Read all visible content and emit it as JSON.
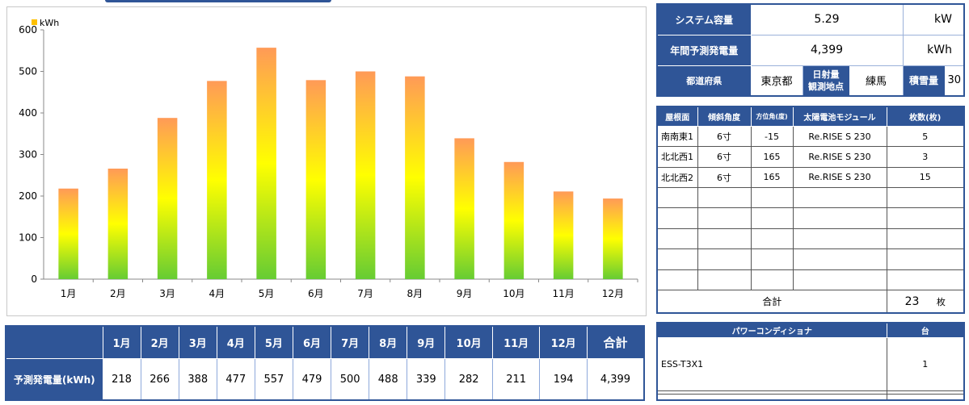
{
  "chart_data": {
    "type": "bar",
    "categories": [
      "1月",
      "2月",
      "3月",
      "4月",
      "5月",
      "6月",
      "7月",
      "8月",
      "9月",
      "10月",
      "11月",
      "12月"
    ],
    "series": [
      {
        "name": "kWh",
        "values": [
          218,
          266,
          388,
          477,
          557,
          479,
          500,
          488,
          339,
          282,
          211,
          194
        ]
      }
    ],
    "ylim": [
      0,
      600
    ],
    "yticks": [
      0,
      100,
      200,
      300,
      400,
      500,
      600
    ],
    "grid": false,
    "legend": "top-left",
    "colors": {
      "bar_top": "#ff9a57",
      "bar_mid": "#ffff00",
      "bar_bottom": "#66cc33",
      "legend_swatch": "#ffc000"
    }
  },
  "monthly_table": {
    "months": [
      "1月",
      "2月",
      "3月",
      "4月",
      "5月",
      "6月",
      "7月",
      "8月",
      "9月",
      "10月",
      "11月",
      "12月"
    ],
    "total_label": "合計",
    "row_label": "予測発電量(kWh)",
    "values": [
      "218",
      "266",
      "388",
      "477",
      "557",
      "479",
      "500",
      "488",
      "339",
      "282",
      "211",
      "194"
    ],
    "total_value": "4,399"
  },
  "system": {
    "capacity_label": "システム容量",
    "capacity_value": "5.29",
    "capacity_unit": "kW",
    "annual_label": "年間予測発電量",
    "annual_value": "4,399",
    "annual_unit": "kWh",
    "prefecture_label": "都道府県",
    "prefecture_value": "東京都",
    "sunlight_label_1": "日射量",
    "sunlight_label_2": "観測地点",
    "sunlight_value": "練馬",
    "snow_label": "積雪量",
    "snow_value": "30"
  },
  "roof": {
    "headers": [
      "屋根面",
      "傾斜角度",
      "方位角(度)",
      "太陽電池モジュール",
      "枚数(枚)"
    ],
    "rows": [
      {
        "face": "南南東1",
        "tilt": "6寸",
        "azimuth": "-15",
        "module": "Re.RISE S 230",
        "count": "5"
      },
      {
        "face": "北北西1",
        "tilt": "6寸",
        "azimuth": "165",
        "module": "Re.RISE S 230",
        "count": "3"
      },
      {
        "face": "北北西2",
        "tilt": "6寸",
        "azimuth": "165",
        "module": "Re.RISE S 230",
        "count": "15"
      }
    ],
    "total_label": "合計",
    "total_value": "23",
    "total_unit": "枚"
  },
  "inverter": {
    "header_name": "パワーコンディショナ",
    "header_count": "台",
    "rows": [
      {
        "name": "ESS-T3X1",
        "count": "1"
      }
    ]
  },
  "colors": {
    "header_blue": "#2f5597"
  }
}
